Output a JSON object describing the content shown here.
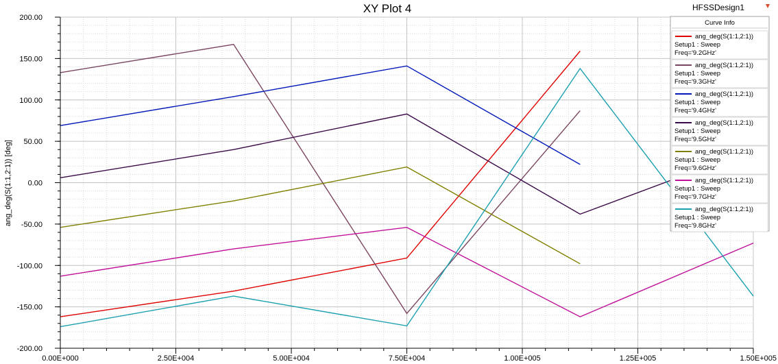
{
  "header": {
    "title": "XY Plot 4",
    "design": "HFSSDesign1"
  },
  "legend": {
    "title": "Curve Info"
  },
  "chart_data": {
    "type": "line",
    "title": "XY Plot 4",
    "xlabel": "",
    "ylabel": "ang_deg(S(1:1,2:1)) [deg]",
    "xlim": [
      0,
      150000
    ],
    "ylim": [
      -200,
      200
    ],
    "x_ticks": [
      "0.00E+000",
      "2.50E+004",
      "5.00E+004",
      "7.50E+004",
      "1.00E+005",
      "1.25E+005",
      "1.50E+005"
    ],
    "x_tick_values": [
      0,
      25000,
      50000,
      75000,
      100000,
      125000,
      150000
    ],
    "y_ticks": [
      "200.00",
      "150.00",
      "100.00",
      "50.00",
      "0.00",
      "-50.00",
      "-100.00",
      "-150.00",
      "-200.00"
    ],
    "y_tick_values": [
      200,
      150,
      100,
      50,
      0,
      -50,
      -100,
      -150,
      -200
    ],
    "grid": true,
    "legend_position": "top-right",
    "series": [
      {
        "trace": "ang_deg(S(1:1,2:1))",
        "setup": "Setup1 : Sweep",
        "freq": "Freq='9.2GHz'",
        "color": "#e00000",
        "x": [
          0,
          37500,
          75000,
          112500
        ],
        "y": [
          -162,
          -131,
          -91,
          159
        ]
      },
      {
        "trace": "ang_deg(S(1:1,2:1))",
        "setup": "Setup1 : Sweep",
        "freq": "Freq='9.3GHz'",
        "color": "#7a4560",
        "x": [
          0,
          37500,
          75000,
          112500
        ],
        "y": [
          133,
          167,
          -158,
          87
        ]
      },
      {
        "trace": "ang_deg(S(1:1,2:1))",
        "setup": "Setup1 : Sweep",
        "freq": "Freq='9.4GHz'",
        "color": "#0018b8",
        "x": [
          0,
          37500,
          75000,
          112500
        ],
        "y": [
          69,
          104,
          141,
          22
        ]
      },
      {
        "trace": "ang_deg(S(1:1,2:1))",
        "setup": "Setup1 : Sweep",
        "freq": "Freq='9.5GHz'",
        "color": "#3a0a48",
        "x": [
          0,
          37500,
          75000,
          112500,
          150000
        ],
        "y": [
          6,
          40,
          83,
          -38,
          40
        ]
      },
      {
        "trace": "ang_deg(S(1:1,2:1))",
        "setup": "Setup1 : Sweep",
        "freq": "Freq='9.6GHz'",
        "color": "#808000",
        "x": [
          0,
          37500,
          75000,
          112500
        ],
        "y": [
          -54,
          -22,
          19,
          -98
        ]
      },
      {
        "trace": "ang_deg(S(1:1,2:1))",
        "setup": "Setup1 : Sweep",
        "freq": "Freq='9.7GHz'",
        "color": "#c0109a",
        "x": [
          0,
          37500,
          75000,
          112500,
          150000
        ],
        "y": [
          -113,
          -80,
          -54,
          -162,
          -73
        ]
      },
      {
        "trace": "ang_deg(S(1:1,2:1))",
        "setup": "Setup1 : Sweep",
        "freq": "Freq='9.8GHz'",
        "color": "#1aa0b0",
        "x": [
          0,
          37500,
          75000,
          112500,
          150000
        ],
        "y": [
          -174,
          -137,
          -173,
          138,
          -137
        ]
      }
    ]
  }
}
